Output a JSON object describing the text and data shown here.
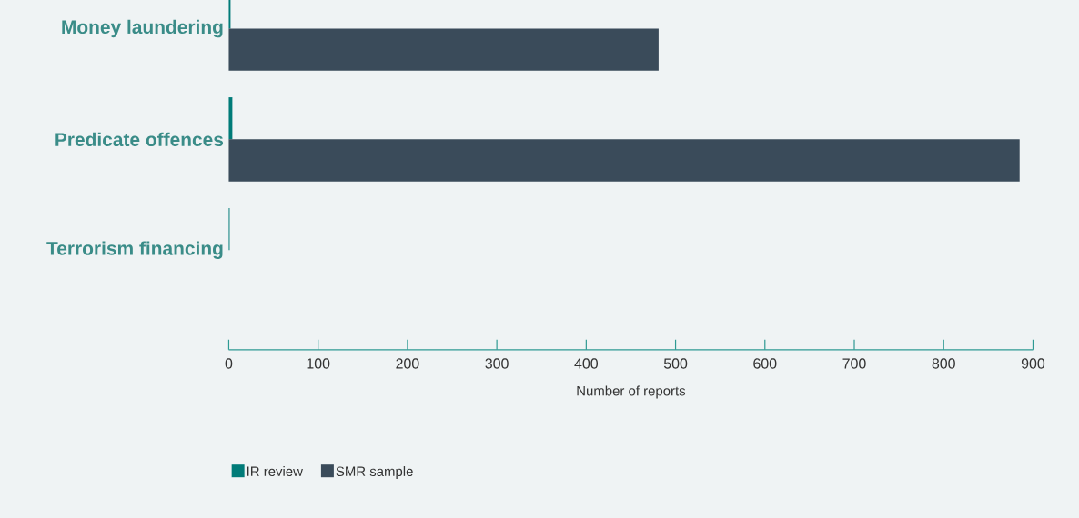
{
  "chart_data": {
    "type": "bar",
    "orientation": "horizontal",
    "categories": [
      "Money laundering",
      "Predicate offences",
      "Terrorism financing"
    ],
    "series": [
      {
        "name": "IR review",
        "color": "#007b78",
        "values": [
          2,
          4,
          1
        ]
      },
      {
        "name": "SMR sample",
        "color": "#3a4b5a",
        "values": [
          481,
          885,
          0
        ]
      }
    ],
    "xlim": [
      0,
      900
    ],
    "xticks": [
      0,
      100,
      200,
      300,
      400,
      500,
      600,
      700,
      800,
      900
    ],
    "xlabel": "Number of reports",
    "legend": "bottom left"
  }
}
